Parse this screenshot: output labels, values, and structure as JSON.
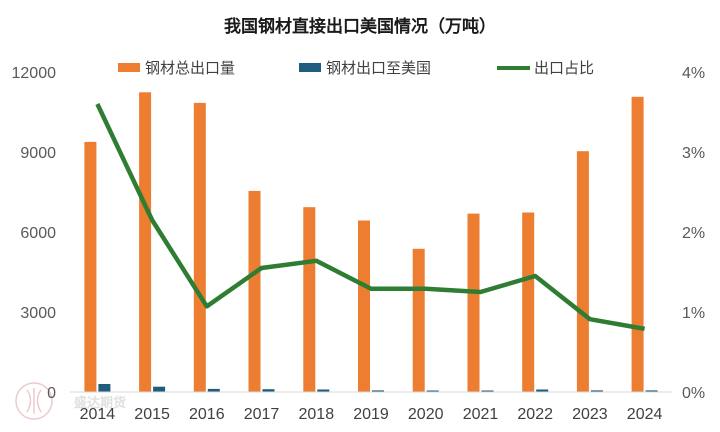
{
  "chart_data": {
    "type": "bar",
    "title": "我国钢材直接出口美国情况（万吨）",
    "categories": [
      "2014",
      "2015",
      "2016",
      "2017",
      "2018",
      "2019",
      "2020",
      "2021",
      "2022",
      "2023",
      "2024"
    ],
    "series": [
      {
        "name": "钢材总出口量",
        "kind": "bar",
        "axis": "left",
        "color": "#ED7D31",
        "values": [
          9380,
          11240,
          10840,
          7540,
          6930,
          6430,
          5370,
          6690,
          6730,
          9030,
          11070
        ]
      },
      {
        "name": "钢材出口至美国",
        "kind": "bar",
        "axis": "left",
        "color": "#1F5C7E",
        "values": [
          300,
          200,
          115,
          105,
          95,
          60,
          55,
          55,
          95,
          60,
          60
        ]
      },
      {
        "name": "出口占比",
        "kind": "line",
        "axis": "right",
        "color": "#2E7D32",
        "values": [
          3.6,
          2.15,
          1.07,
          1.55,
          1.64,
          1.29,
          1.29,
          1.25,
          1.45,
          0.91,
          0.79
        ]
      }
    ],
    "y_left": {
      "min": 0,
      "max": 12000,
      "ticks": [
        "0",
        "3000",
        "6000",
        "9000",
        "12000"
      ],
      "tick_values": [
        0,
        3000,
        6000,
        9000,
        12000
      ]
    },
    "y_right": {
      "min": 0,
      "max": 4,
      "ticks": [
        "0%",
        "1%",
        "2%",
        "3%",
        "4%"
      ],
      "tick_values": [
        0,
        1,
        2,
        3,
        4
      ]
    },
    "legend_position": "top-center",
    "grid": false
  },
  "watermark": {
    "text": "盛达期货"
  }
}
